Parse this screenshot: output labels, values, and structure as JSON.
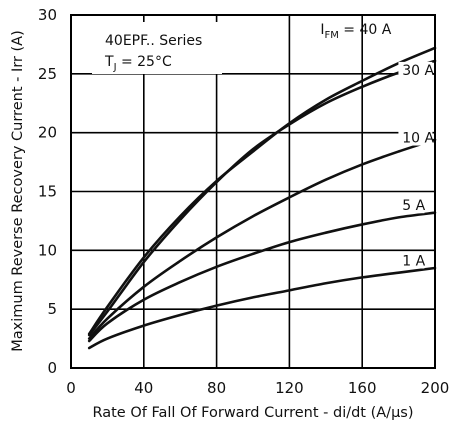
{
  "chart_data": {
    "type": "line",
    "xlabel": "Rate Of Fall Of Forward Current - di/dt (A/µs)",
    "ylabel": "Maximum Reverse Recovery Current - Irr (A)",
    "xlim": [
      0,
      200
    ],
    "ylim": [
      0,
      30
    ],
    "x_ticks": [
      0,
      40,
      80,
      120,
      160,
      200
    ],
    "y_ticks": [
      0,
      5,
      10,
      15,
      20,
      25,
      30
    ],
    "grid": true,
    "annotation": {
      "line1": "40EPF.. Series",
      "line2_main": "T",
      "line2_sub": "J",
      "line2_rest": " = 25°C"
    },
    "series": [
      {
        "name": "40 A",
        "label_prefix_main": "I",
        "label_prefix_sub": "FM",
        "label_value": " = 40 A",
        "x": [
          10,
          20,
          40,
          60,
          80,
          100,
          120,
          140,
          160,
          180,
          200
        ],
        "y": [
          2.9,
          5.2,
          9.4,
          12.9,
          15.9,
          18.4,
          20.8,
          22.8,
          24.4,
          25.9,
          27.2
        ]
      },
      {
        "name": "30 A",
        "label": "30 A",
        "x": [
          10,
          20,
          40,
          60,
          80,
          100,
          120,
          140,
          160,
          180,
          200
        ],
        "y": [
          2.8,
          4.8,
          9.0,
          12.6,
          15.8,
          18.6,
          20.7,
          22.5,
          23.9,
          25.1,
          26.1
        ]
      },
      {
        "name": "10 A",
        "label": "10 A",
        "x": [
          10,
          20,
          40,
          60,
          80,
          100,
          120,
          140,
          160,
          180,
          200
        ],
        "y": [
          2.5,
          4.2,
          6.9,
          9.1,
          11.1,
          12.9,
          14.5,
          16.0,
          17.3,
          18.4,
          19.4
        ]
      },
      {
        "name": "5 A",
        "label": "5 A",
        "x": [
          10,
          20,
          40,
          60,
          80,
          100,
          120,
          140,
          160,
          180,
          200
        ],
        "y": [
          2.3,
          3.8,
          5.8,
          7.3,
          8.6,
          9.7,
          10.7,
          11.5,
          12.2,
          12.8,
          13.2
        ]
      },
      {
        "name": "1 A",
        "label": "1 A",
        "x": [
          10,
          20,
          40,
          60,
          80,
          100,
          120,
          140,
          160,
          180,
          200
        ],
        "y": [
          1.7,
          2.5,
          3.6,
          4.5,
          5.3,
          6.0,
          6.6,
          7.2,
          7.7,
          8.1,
          8.5
        ]
      }
    ]
  }
}
